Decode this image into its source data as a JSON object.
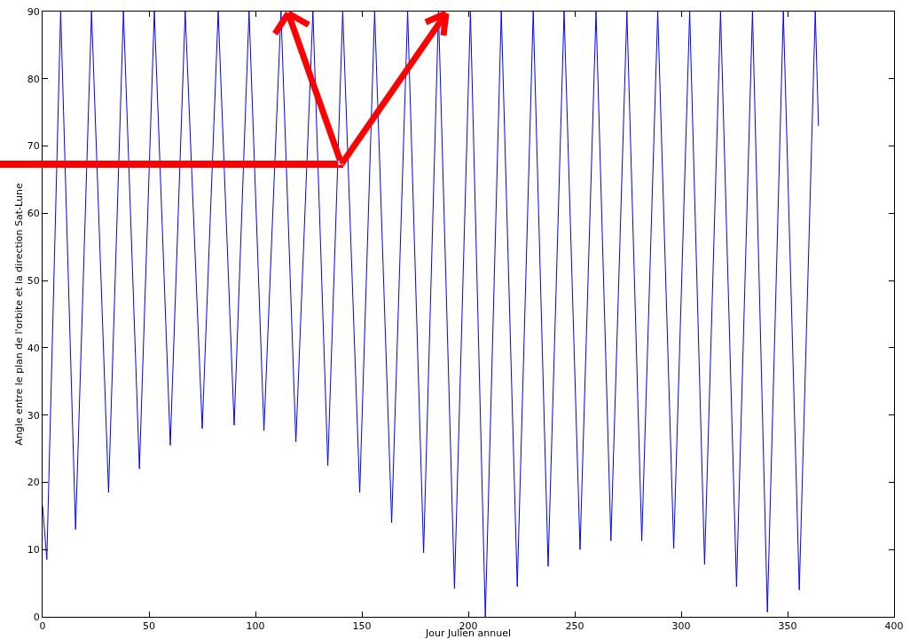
{
  "chart_data": {
    "type": "line",
    "xlabel": "Jour Julien annuel",
    "ylabel": "Angle entre le plan de l'orbite et la direction Sat-Lune",
    "x": [
      0,
      2,
      8.5,
      15.5,
      23,
      31,
      38,
      45.5,
      52.5,
      60,
      67,
      75,
      82.5,
      90,
      97,
      104,
      112,
      119,
      127,
      134,
      141,
      149,
      156,
      164,
      171.5,
      179,
      186,
      193.5,
      201,
      208,
      215.5,
      223,
      230.5,
      237.5,
      245,
      252.5,
      260,
      267,
      274.5,
      281.5,
      289,
      296.5,
      304,
      311,
      318.5,
      326,
      333.5,
      340.5,
      348,
      355.5,
      363,
      364.5
    ],
    "series": [
      {
        "color": "#0000ff",
        "values": [
          16.5,
          8.5,
          90,
          13,
          90,
          18.5,
          90,
          22,
          90,
          25.5,
          90,
          28,
          90,
          28.5,
          90,
          27.7,
          90,
          26,
          90,
          22.5,
          90,
          18.5,
          90,
          14,
          90,
          9.5,
          90,
          4.2,
          90,
          0,
          90,
          4.5,
          90,
          7.5,
          90,
          10,
          90,
          11.3,
          90,
          11.3,
          90,
          10.2,
          90,
          7.8,
          90,
          4.5,
          90,
          0.7,
          90,
          4,
          90,
          73
        ]
      }
    ],
    "xlim": [
      0,
      400
    ],
    "xticks": [
      0,
      50,
      100,
      150,
      200,
      250,
      300,
      350,
      400
    ],
    "ylim": [
      0,
      90
    ],
    "yticks": [
      0,
      10,
      20,
      30,
      40,
      50,
      60,
      70,
      80,
      90
    ],
    "marker": "none",
    "line_style": "solid"
  }
}
